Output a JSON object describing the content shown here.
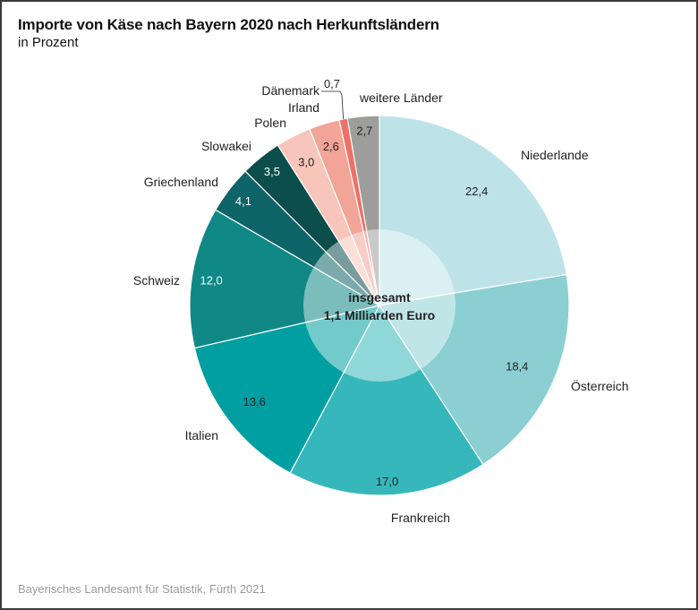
{
  "chart_data": {
    "type": "pie",
    "variant": "donut-with-translucent-center",
    "title": "Importe von Käse nach Bayern 2020 nach Herkunftsländern",
    "subtitle": "in Prozent",
    "unit": "Prozent",
    "center_label": [
      "insgesamt",
      "1,1 Milliarden Euro"
    ],
    "source": "Bayerisches Landesamt für Statistik, Fürth 2021",
    "start_angle_note": "clockwise from 12 o'clock",
    "slices": [
      {
        "label": "Niederlande",
        "value": 22.4,
        "value_text": "22,4",
        "color": "#bde3e8",
        "text_color": "#222222"
      },
      {
        "label": "Österreich",
        "value": 18.4,
        "value_text": "18,4",
        "color": "#8bcfd3",
        "text_color": "#222222"
      },
      {
        "label": "Frankreich",
        "value": 17.0,
        "value_text": "17,0",
        "color": "#36b7bb",
        "text_color": "#222222"
      },
      {
        "label": "Italien",
        "value": 13.6,
        "value_text": "13,6",
        "color": "#019fa1",
        "text_color": "#222222"
      },
      {
        "label": "Schweiz",
        "value": 12.0,
        "value_text": "12,0",
        "color": "#0f8886",
        "text_color": "#ffffff"
      },
      {
        "label": "Griechenland",
        "value": 4.1,
        "value_text": "4,1",
        "color": "#0e6466",
        "text_color": "#ffffff"
      },
      {
        "label": "Slowakei",
        "value": 3.5,
        "value_text": "3,5",
        "color": "#0b4e4b",
        "text_color": "#ffffff"
      },
      {
        "label": "Polen",
        "value": 3.0,
        "value_text": "3,0",
        "color": "#f7c5b9",
        "text_color": "#222222"
      },
      {
        "label": "Irland",
        "value": 2.6,
        "value_text": "2,6",
        "color": "#f2a496",
        "text_color": "#222222"
      },
      {
        "label": "Dänemark",
        "value": 0.7,
        "value_text": "0,7",
        "color": "#ec7167",
        "text_color": "#222222"
      },
      {
        "label": "weitere Länder",
        "value": 2.7,
        "value_text": "2,7",
        "color": "#9d9d9c",
        "text_color": "#222222"
      }
    ]
  }
}
